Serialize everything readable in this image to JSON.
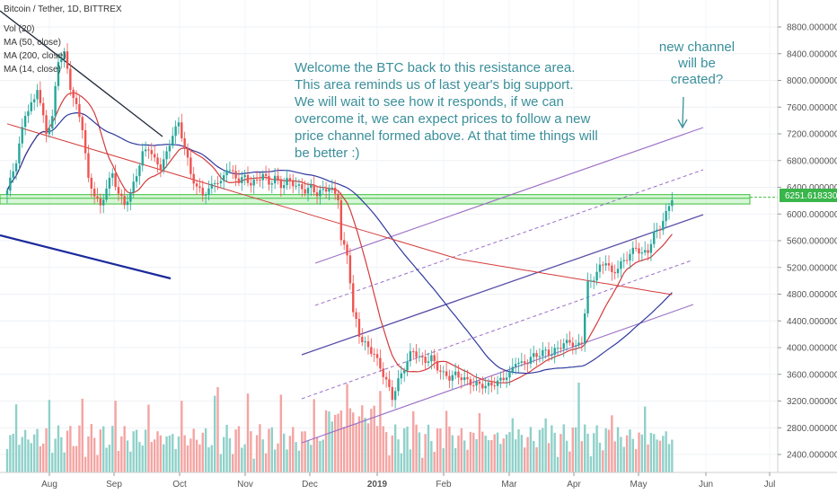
{
  "chart_data": {
    "type": "candlestick",
    "title": "Bitcoin / Tether, 1D, BITTREX",
    "indicators": [
      "Vol (20)",
      "MA (50, close)",
      "MA (200, close)",
      "MA (14, close)"
    ],
    "price_axis": {
      "ticks": [
        "8800.00000000",
        "8400.00000000",
        "8000.00000000",
        "7600.00000000",
        "7200.00000000",
        "6800.00000000",
        "6400.00000000",
        "6000.00000000",
        "5600.00000000",
        "5200.00000000",
        "4800.00000000",
        "4400.00000000",
        "4000.00000000",
        "3600.00000000",
        "3200.00000000",
        "2800.00000000",
        "2400.00000000"
      ],
      "range": [
        2200,
        9100
      ]
    },
    "time_axis": {
      "labels": [
        "Aug",
        "Sep",
        "Oct",
        "Nov",
        "Dec",
        "2019",
        "Feb",
        "Mar",
        "Apr",
        "May",
        "Jun",
        "Jul"
      ]
    },
    "last_price": "6251.61833090",
    "price_path": [
      [
        0,
        6350
      ],
      [
        3,
        6800
      ],
      [
        6,
        7500
      ],
      [
        9,
        7700
      ],
      [
        10,
        7900
      ],
      [
        13,
        7200
      ],
      [
        15,
        7450
      ],
      [
        17,
        8300
      ],
      [
        19,
        8400
      ],
      [
        21,
        7900
      ],
      [
        23,
        7600
      ],
      [
        25,
        7300
      ],
      [
        27,
        6500
      ],
      [
        29,
        6300
      ],
      [
        31,
        6100
      ],
      [
        33,
        6400
      ],
      [
        35,
        6600
      ],
      [
        37,
        6300
      ],
      [
        39,
        6150
      ],
      [
        41,
        6300
      ],
      [
        43,
        6600
      ],
      [
        45,
        6900
      ],
      [
        47,
        7000
      ],
      [
        49,
        6800
      ],
      [
        51,
        6700
      ],
      [
        53,
        6900
      ],
      [
        55,
        7200
      ],
      [
        57,
        7350
      ],
      [
        59,
        7000
      ],
      [
        61,
        6600
      ],
      [
        63,
        6400
      ],
      [
        65,
        6300
      ],
      [
        67,
        6350
      ],
      [
        69,
        6500
      ],
      [
        71,
        6450
      ],
      [
        73,
        6700
      ],
      [
        75,
        6600
      ],
      [
        77,
        6500
      ],
      [
        79,
        6550
      ],
      [
        81,
        6450
      ],
      [
        83,
        6500
      ],
      [
        85,
        6600
      ],
      [
        87,
        6450
      ],
      [
        89,
        6550
      ],
      [
        91,
        6420
      ],
      [
        93,
        6500
      ],
      [
        95,
        6460
      ],
      [
        97,
        6400
      ],
      [
        99,
        6350
      ],
      [
        101,
        6400
      ],
      [
        103,
        6300
      ],
      [
        105,
        6350
      ],
      [
        107,
        6400
      ],
      [
        109,
        6300
      ],
      [
        110,
        6250
      ],
      [
        111,
        5600
      ],
      [
        112,
        5500
      ],
      [
        113,
        5400
      ],
      [
        114,
        5000
      ],
      [
        115,
        4500
      ],
      [
        116,
        4400
      ],
      [
        117,
        4200
      ],
      [
        118,
        4100
      ],
      [
        120,
        4000
      ],
      [
        122,
        3900
      ],
      [
        124,
        3700
      ],
      [
        126,
        3500
      ],
      [
        128,
        3250
      ],
      [
        130,
        3500
      ],
      [
        132,
        3700
      ],
      [
        134,
        3900
      ],
      [
        135,
        3950
      ],
      [
        137,
        3850
      ],
      [
        139,
        3800
      ],
      [
        141,
        3850
      ],
      [
        143,
        3700
      ],
      [
        145,
        3600
      ],
      [
        147,
        3550
      ],
      [
        149,
        3600
      ],
      [
        151,
        3550
      ],
      [
        153,
        3500
      ],
      [
        155,
        3450
      ],
      [
        157,
        3450
      ],
      [
        159,
        3420
      ],
      [
        161,
        3450
      ],
      [
        163,
        3480
      ],
      [
        165,
        3550
      ],
      [
        167,
        3600
      ],
      [
        169,
        3800
      ],
      [
        171,
        3750
      ],
      [
        173,
        3800
      ],
      [
        175,
        3880
      ],
      [
        177,
        3900
      ],
      [
        179,
        3950
      ],
      [
        181,
        3900
      ],
      [
        183,
        4000
      ],
      [
        185,
        4050
      ],
      [
        187,
        4100
      ],
      [
        189,
        4000
      ],
      [
        191,
        4100
      ],
      [
        193,
        4950
      ],
      [
        195,
        5050
      ],
      [
        197,
        5200
      ],
      [
        199,
        5300
      ],
      [
        201,
        5100
      ],
      [
        203,
        5200
      ],
      [
        205,
        5300
      ],
      [
        207,
        5400
      ],
      [
        209,
        5500
      ],
      [
        211,
        5400
      ],
      [
        213,
        5450
      ],
      [
        215,
        5700
      ],
      [
        217,
        5800
      ],
      [
        219,
        6000
      ],
      [
        221,
        6250
      ]
    ]
  },
  "annotations": {
    "main": [
      "Welcome the BTC back to this resistance area.",
      "This area reminds us of last year's big support.",
      "We will wait to see how it responds, if we can",
      "overcome it, we can expect prices to follow a new",
      "price channel formed above. At that time things will",
      "be better :)"
    ],
    "side": [
      "new channel",
      "will be",
      "created?"
    ]
  },
  "colors": {
    "up": "#26a69a",
    "down": "#ef5350",
    "vol_up": "#8fd1c9",
    "vol_down": "#f4a4a2",
    "ma_red": "#d43b3b",
    "ma_navy": "#2f3a9e",
    "channel": "#9c6fc6",
    "annot": "#3a8f9a",
    "support_fill": "#b7eeb7",
    "support_line": "#3cbf3c",
    "price_label_bg": "#39b54a"
  }
}
